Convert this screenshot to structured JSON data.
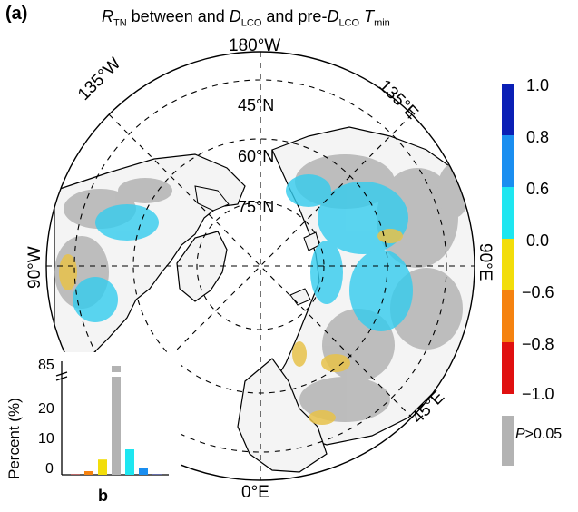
{
  "panel_label": "(a)",
  "title": {
    "r": "R",
    "r_sub": "TN",
    "mid1": " between and ",
    "d": "D",
    "d_sub": "LCO",
    "mid2": " and pre-",
    "d2": "D",
    "d2_sub": "LCO",
    "t": " T",
    "t_sub": "min"
  },
  "map": {
    "longitudes": [
      "180°W",
      "135°W",
      "135°E",
      "90°W",
      "90°E",
      "45°E",
      "0°E"
    ],
    "latitudes": [
      "45°N",
      "60°N",
      "75°N"
    ],
    "colors": {
      "land_bg": "#f4f4f4",
      "coast": "#000000",
      "nonsig": "#b3b3b3",
      "cyan": "#33ccee",
      "yellow": "#e8c24a"
    }
  },
  "colorbar": {
    "ticks": [
      "1.0",
      "0.8",
      "0.6",
      "0.0",
      "−0.6",
      "−0.8",
      "−1.0"
    ],
    "segments": [
      {
        "color": "#0a1fb5"
      },
      {
        "color": "#1a8ef0"
      },
      {
        "color": "#1ee6f0"
      },
      {
        "color": "#f2dd0a"
      },
      {
        "color": "#f5820f"
      },
      {
        "color": "#e01010"
      }
    ],
    "nonsig_color": "#b3b3b3",
    "nonsig_label_p": "P",
    "nonsig_label_rest": ">0.05"
  },
  "inset": {
    "label": "b",
    "ylabel": "Percent (%)",
    "yticks": [
      "0",
      "10",
      "20",
      "85"
    ]
  },
  "chart_data": {
    "type": "bar",
    "title": "",
    "xlabel": "",
    "ylabel": "Percent (%)",
    "ylim": [
      0,
      85
    ],
    "broken_axis": true,
    "categories": [
      "−1.0 to −0.8",
      "−0.8 to −0.6",
      "−0.6 to 0.0",
      "P>0.05",
      "0.0 to 0.6",
      "0.6 to 0.8",
      "0.8 to 1.0"
    ],
    "values": [
      0.1,
      1.0,
      4.2,
      85,
      7.0,
      2.0,
      0.1
    ],
    "colors": [
      "#e01010",
      "#f5820f",
      "#f2dd0a",
      "#b3b3b3",
      "#1ee6f0",
      "#1a8ef0",
      "#0a1fb5"
    ]
  }
}
